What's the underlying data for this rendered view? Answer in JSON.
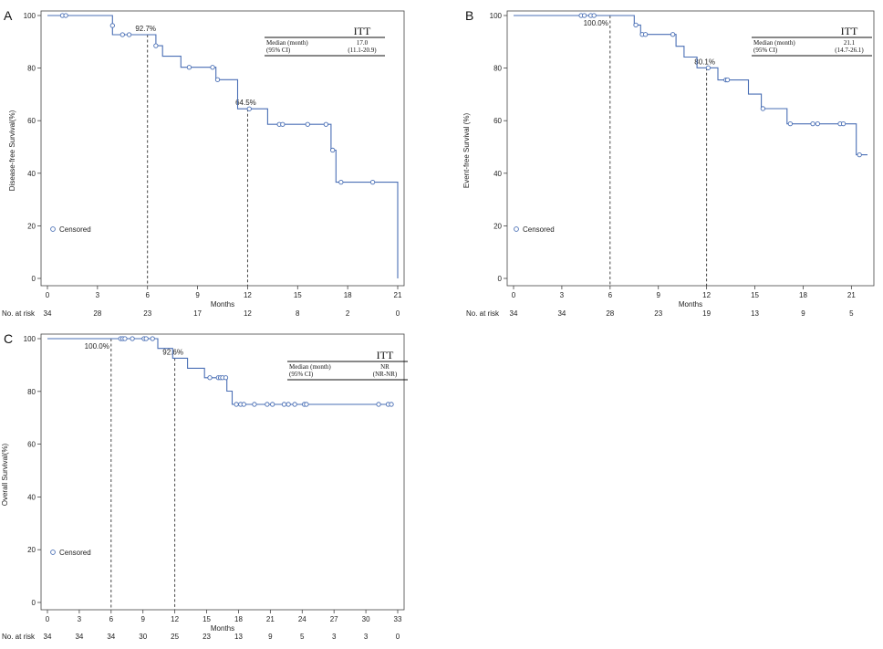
{
  "figure": {
    "at_risk_label": "No. at risk",
    "legend_label": "Censored",
    "line_color": "#4a6fb5"
  },
  "chart_data": [
    {
      "panel": "A",
      "type": "line",
      "subtype": "kaplan-meier",
      "xlabel": "Months",
      "ylabel": "Disease-free Survival(%)",
      "xlim": [
        0,
        21
      ],
      "ylim": [
        0,
        100
      ],
      "xticks": [
        0,
        3,
        6,
        9,
        12,
        15,
        18,
        21
      ],
      "yticks": [
        0,
        20,
        40,
        60,
        80,
        100
      ],
      "curve": {
        "x": [
          0,
          3.9,
          3.9,
          6.5,
          6.5,
          6.9,
          6.9,
          8.0,
          8.0,
          10.1,
          10.1,
          11.4,
          11.4,
          13.2,
          13.2,
          17.0,
          17.0,
          17.3,
          17.3,
          21.0,
          21.0
        ],
        "y": [
          100,
          100,
          92.7,
          92.7,
          88.5,
          88.5,
          84.5,
          84.5,
          80.3,
          80.3,
          75.6,
          75.6,
          64.5,
          64.5,
          58.6,
          58.6,
          48.8,
          48.8,
          36.6,
          36.6,
          0
        ]
      },
      "censored": [
        {
          "x": 0.9,
          "y": 100
        },
        {
          "x": 1.1,
          "y": 100
        },
        {
          "x": 3.9,
          "y": 96.2
        },
        {
          "x": 4.5,
          "y": 92.7
        },
        {
          "x": 4.9,
          "y": 92.7
        },
        {
          "x": 6.5,
          "y": 88.5
        },
        {
          "x": 8.5,
          "y": 80.3
        },
        {
          "x": 9.9,
          "y": 80.3
        },
        {
          "x": 10.2,
          "y": 75.6
        },
        {
          "x": 12.1,
          "y": 64.5
        },
        {
          "x": 13.9,
          "y": 58.6
        },
        {
          "x": 14.1,
          "y": 58.6
        },
        {
          "x": 15.6,
          "y": 58.6
        },
        {
          "x": 16.7,
          "y": 58.6
        },
        {
          "x": 17.1,
          "y": 48.8
        },
        {
          "x": 17.6,
          "y": 36.6
        },
        {
          "x": 19.5,
          "y": 36.6
        }
      ],
      "references": [
        {
          "x": 6,
          "y": 92.7,
          "label": "92.7%"
        },
        {
          "x": 12,
          "y": 64.5,
          "label": "64.5%"
        }
      ],
      "itt": {
        "title": "ITT",
        "row1_label": "Median (month)",
        "row1_value": "17.0",
        "row2_label": "(95% CI)",
        "row2_value": "(11.1-20.9)"
      },
      "at_risk": [
        {
          "x": 0,
          "n": "34"
        },
        {
          "x": 3,
          "n": "28"
        },
        {
          "x": 6,
          "n": "23"
        },
        {
          "x": 9,
          "n": "17"
        },
        {
          "x": 12,
          "n": "12"
        },
        {
          "x": 15,
          "n": "8"
        },
        {
          "x": 18,
          "n": "2"
        },
        {
          "x": 21,
          "n": "0"
        }
      ]
    },
    {
      "panel": "B",
      "type": "line",
      "subtype": "kaplan-meier",
      "xlabel": "Months",
      "ylabel": "Event-free Survival (%)",
      "xlim": [
        0,
        22
      ],
      "ylim": [
        0,
        100
      ],
      "xticks": [
        0,
        3,
        6,
        9,
        12,
        15,
        18,
        21
      ],
      "yticks": [
        0,
        20,
        40,
        60,
        80,
        100
      ],
      "curve": {
        "x": [
          0,
          7.5,
          7.5,
          7.9,
          7.9,
          10.1,
          10.1,
          10.6,
          10.6,
          11.4,
          11.4,
          12.7,
          12.7,
          14.6,
          14.6,
          15.4,
          15.4,
          17.0,
          17.0,
          21.3,
          21.3,
          22.0
        ],
        "y": [
          100,
          100,
          96.4,
          96.4,
          92.8,
          92.8,
          88.3,
          88.3,
          84.2,
          84.2,
          80.1,
          80.1,
          75.5,
          75.5,
          70.1,
          70.1,
          64.6,
          64.6,
          58.8,
          58.8,
          47.0,
          47.0
        ]
      },
      "censored": [
        {
          "x": 4.2,
          "y": 100
        },
        {
          "x": 4.4,
          "y": 100
        },
        {
          "x": 4.8,
          "y": 100
        },
        {
          "x": 5.0,
          "y": 100
        },
        {
          "x": 7.6,
          "y": 96.4
        },
        {
          "x": 8.0,
          "y": 92.8
        },
        {
          "x": 8.2,
          "y": 92.8
        },
        {
          "x": 9.9,
          "y": 92.8
        },
        {
          "x": 12.1,
          "y": 80.1
        },
        {
          "x": 13.2,
          "y": 75.5
        },
        {
          "x": 13.3,
          "y": 75.5
        },
        {
          "x": 15.5,
          "y": 64.6
        },
        {
          "x": 17.2,
          "y": 58.8
        },
        {
          "x": 18.6,
          "y": 58.8
        },
        {
          "x": 18.9,
          "y": 58.8
        },
        {
          "x": 20.3,
          "y": 58.8
        },
        {
          "x": 20.5,
          "y": 58.8
        },
        {
          "x": 21.5,
          "y": 47.0
        }
      ],
      "references": [
        {
          "x": 6,
          "y": 100,
          "label": "100.0%"
        },
        {
          "x": 12,
          "y": 80.1,
          "label": "80.1%"
        }
      ],
      "itt": {
        "title": "ITT",
        "row1_label": "Median (month)",
        "row1_value": "21.1",
        "row2_label": "(95% CI)",
        "row2_value": "(14.7-26.1)"
      },
      "at_risk": [
        {
          "x": 0,
          "n": "34"
        },
        {
          "x": 3,
          "n": "34"
        },
        {
          "x": 6,
          "n": "28"
        },
        {
          "x": 9,
          "n": "23"
        },
        {
          "x": 12,
          "n": "19"
        },
        {
          "x": 15,
          "n": "13"
        },
        {
          "x": 18,
          "n": "9"
        },
        {
          "x": 21,
          "n": "5"
        }
      ]
    },
    {
      "panel": "C",
      "type": "line",
      "subtype": "kaplan-meier",
      "xlabel": "Months",
      "ylabel": "Overall Survival(%)",
      "xlim": [
        0,
        33
      ],
      "ylim": [
        0,
        100
      ],
      "xticks": [
        0,
        3,
        6,
        9,
        12,
        15,
        18,
        21,
        24,
        27,
        30,
        33
      ],
      "yticks": [
        0,
        20,
        40,
        60,
        80,
        100
      ],
      "curve": {
        "x": [
          0,
          10.4,
          10.4,
          11.8,
          11.8,
          13.2,
          13.2,
          14.8,
          14.8,
          16.9,
          16.9,
          17.4,
          17.4,
          32.5
        ],
        "y": [
          100,
          100,
          96.3,
          96.3,
          92.6,
          92.6,
          88.8,
          88.8,
          85.2,
          85.2,
          80.1,
          80.1,
          75.1,
          75.1
        ]
      },
      "censored": [
        {
          "x": 6.9,
          "y": 100
        },
        {
          "x": 7.1,
          "y": 100
        },
        {
          "x": 7.3,
          "y": 100
        },
        {
          "x": 8.0,
          "y": 100
        },
        {
          "x": 9.1,
          "y": 100
        },
        {
          "x": 9.3,
          "y": 100
        },
        {
          "x": 9.9,
          "y": 100
        },
        {
          "x": 15.3,
          "y": 85.2
        },
        {
          "x": 16.1,
          "y": 85.2
        },
        {
          "x": 16.3,
          "y": 85.2
        },
        {
          "x": 16.5,
          "y": 85.2
        },
        {
          "x": 16.8,
          "y": 85.2
        },
        {
          "x": 17.8,
          "y": 75.1
        },
        {
          "x": 18.2,
          "y": 75.1
        },
        {
          "x": 18.5,
          "y": 75.1
        },
        {
          "x": 19.5,
          "y": 75.1
        },
        {
          "x": 20.7,
          "y": 75.1
        },
        {
          "x": 21.2,
          "y": 75.1
        },
        {
          "x": 22.3,
          "y": 75.1
        },
        {
          "x": 22.7,
          "y": 75.1
        },
        {
          "x": 23.3,
          "y": 75.1
        },
        {
          "x": 24.2,
          "y": 75.1
        },
        {
          "x": 24.4,
          "y": 75.1
        },
        {
          "x": 31.2,
          "y": 75.1
        },
        {
          "x": 32.1,
          "y": 75.1
        },
        {
          "x": 32.4,
          "y": 75.1
        }
      ],
      "references": [
        {
          "x": 6,
          "y": 100,
          "label": "100.0%"
        },
        {
          "x": 12,
          "y": 92.6,
          "label": "92.6%"
        }
      ],
      "itt": {
        "title": "ITT",
        "row1_label": "Median (month)",
        "row1_value": "NR",
        "row2_label": "(95% CI)",
        "row2_value": "(NR-NR)"
      },
      "at_risk": [
        {
          "x": 0,
          "n": "34"
        },
        {
          "x": 3,
          "n": "34"
        },
        {
          "x": 6,
          "n": "34"
        },
        {
          "x": 9,
          "n": "30"
        },
        {
          "x": 12,
          "n": "25"
        },
        {
          "x": 15,
          "n": "23"
        },
        {
          "x": 18,
          "n": "13"
        },
        {
          "x": 21,
          "n": "9"
        },
        {
          "x": 24,
          "n": "5"
        },
        {
          "x": 27,
          "n": "3"
        },
        {
          "x": 30,
          "n": "3"
        },
        {
          "x": 33,
          "n": "0"
        }
      ]
    }
  ]
}
